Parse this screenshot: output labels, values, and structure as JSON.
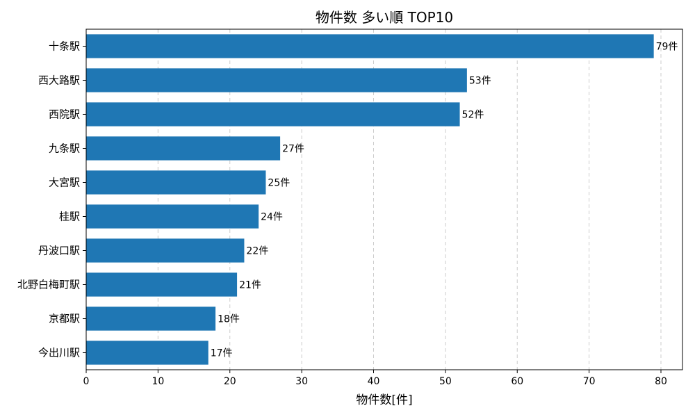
{
  "chart_data": {
    "type": "bar",
    "orientation": "horizontal",
    "title": "物件数 多い順 TOP10",
    "xlabel": "物件数[件]",
    "ylabel": "",
    "xlim": [
      0,
      83
    ],
    "x_ticks": [
      0,
      10,
      20,
      30,
      40,
      50,
      60,
      70,
      80
    ],
    "grid": "x-dashed",
    "bar_color": "#1f77b4",
    "value_suffix": "件",
    "categories": [
      "十条駅",
      "西大路駅",
      "西院駅",
      "九条駅",
      "大宮駅",
      "桂駅",
      "丹波口駅",
      "北野白梅町駅",
      "京都駅",
      "今出川駅"
    ],
    "values": [
      79,
      53,
      52,
      27,
      25,
      24,
      22,
      21,
      18,
      17
    ]
  }
}
